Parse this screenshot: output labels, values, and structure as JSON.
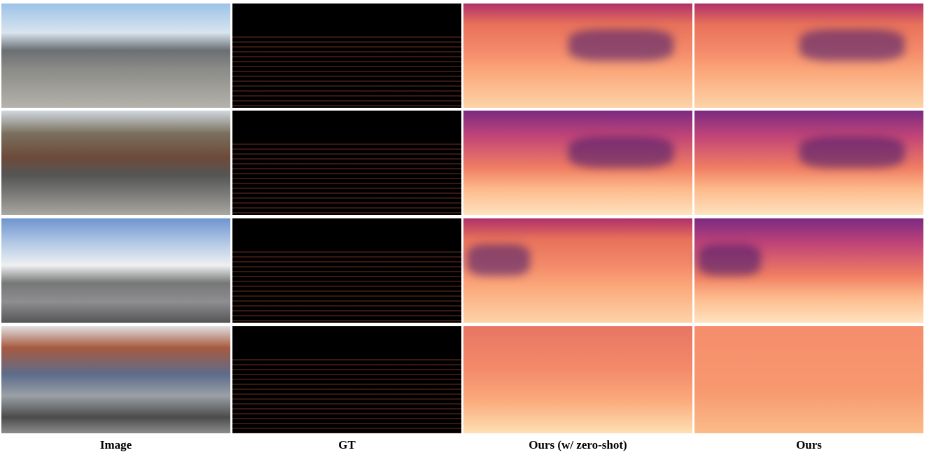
{
  "columns": [
    "Image",
    "GT",
    "Ours (w/ zero-shot)",
    "Ours"
  ]
}
